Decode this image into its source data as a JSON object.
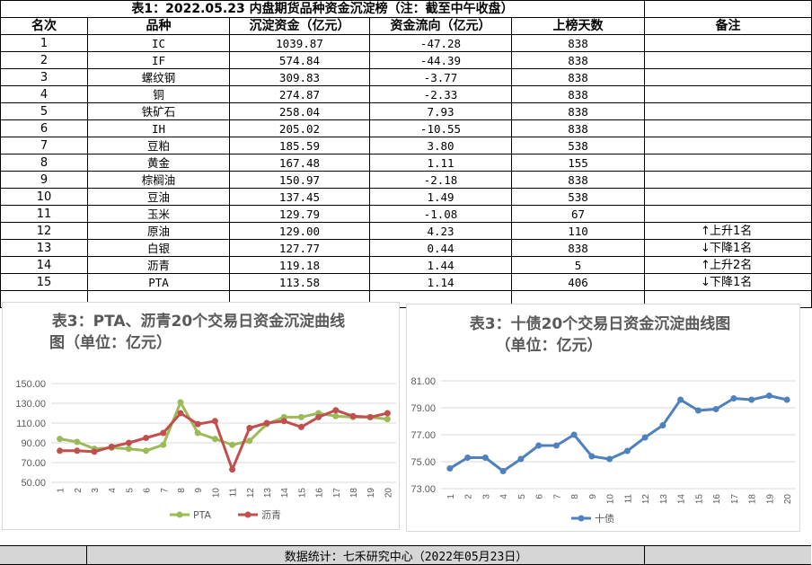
{
  "table": {
    "title": "表1：2022.05.23 内盘期货品种资金沉淀榜（注：截至中午收盘）",
    "headers": [
      "名次",
      "品种",
      "沉淀资金（亿元）",
      "资金流向（亿元）",
      "上榜天数",
      "备注"
    ],
    "rows": [
      {
        "rank": "1",
        "name": "IC",
        "fund": "1039.87",
        "flow": "-47.28",
        "days": "838",
        "note": "",
        "arrow": ""
      },
      {
        "rank": "2",
        "name": "IF",
        "fund": "574.84",
        "flow": "-44.39",
        "days": "838",
        "note": "",
        "arrow": ""
      },
      {
        "rank": "3",
        "name": "螺纹钢",
        "fund": "309.83",
        "flow": "-3.77",
        "days": "838",
        "note": "",
        "arrow": ""
      },
      {
        "rank": "4",
        "name": "铜",
        "fund": "274.87",
        "flow": "-2.33",
        "days": "838",
        "note": "",
        "arrow": ""
      },
      {
        "rank": "5",
        "name": "铁矿石",
        "fund": "258.04",
        "flow": "7.93",
        "days": "838",
        "note": "",
        "arrow": ""
      },
      {
        "rank": "6",
        "name": "IH",
        "fund": "205.02",
        "flow": "-10.55",
        "days": "838",
        "note": "",
        "arrow": ""
      },
      {
        "rank": "7",
        "name": "豆粕",
        "fund": "185.59",
        "flow": "3.80",
        "days": "538",
        "note": "",
        "arrow": ""
      },
      {
        "rank": "8",
        "name": "黄金",
        "fund": "167.48",
        "flow": "1.11",
        "days": "155",
        "note": "",
        "arrow": ""
      },
      {
        "rank": "9",
        "name": "棕榈油",
        "fund": "150.97",
        "flow": "-2.18",
        "days": "838",
        "note": "",
        "arrow": ""
      },
      {
        "rank": "10",
        "name": "豆油",
        "fund": "137.45",
        "flow": "1.49",
        "days": "538",
        "note": "",
        "arrow": ""
      },
      {
        "rank": "11",
        "name": "玉米",
        "fund": "129.79",
        "flow": "-1.08",
        "days": "67",
        "note": "",
        "arrow": ""
      },
      {
        "rank": "12",
        "name": "原油",
        "fund": "129.00",
        "flow": "4.23",
        "days": "110",
        "note": "上升1名",
        "arrow": "↑"
      },
      {
        "rank": "13",
        "name": "白银",
        "fund": "127.77",
        "flow": "0.44",
        "days": "838",
        "note": "下降1名",
        "arrow": "↓"
      },
      {
        "rank": "14",
        "name": "沥青",
        "fund": "119.18",
        "flow": "1.44",
        "days": "5",
        "note": "上升2名",
        "arrow": "↑"
      },
      {
        "rank": "15",
        "name": "PTA",
        "fund": "113.58",
        "flow": "1.14",
        "days": "406",
        "note": "下降1名",
        "arrow": "↓"
      }
    ]
  },
  "footer": "数据统计：七禾研究中心（2022年05月23日）",
  "chart_data": [
    {
      "type": "line",
      "title": "表3：PTA、沥青20个交易日资金沉淀曲线图（单位：亿元）",
      "title_lines": [
        "表3：PTA、沥青20个交易日资金沉淀曲线",
        "图（单位：亿元）"
      ],
      "x": [
        "1",
        "2",
        "3",
        "4",
        "5",
        "6",
        "7",
        "8",
        "9",
        "10",
        "11",
        "12",
        "13",
        "14",
        "15",
        "16",
        "17",
        "18",
        "19",
        "20"
      ],
      "ylim": [
        50,
        150
      ],
      "yticks": [
        "150.00",
        "130.00",
        "110.00",
        "90.00",
        "70.00",
        "50.00"
      ],
      "ytick_values": [
        150,
        130,
        110,
        90,
        70,
        50
      ],
      "grid": true,
      "legend": "bottom",
      "series": [
        {
          "name": "PTA",
          "color": "#9bbb59",
          "values": [
            94,
            91,
            84,
            85,
            84,
            82,
            88,
            131,
            100,
            94,
            88,
            92,
            109,
            116,
            116,
            120,
            117,
            116,
            116,
            114
          ]
        },
        {
          "name": "沥青",
          "color": "#c0504d",
          "values": [
            82,
            82,
            81,
            86,
            90,
            95,
            100,
            120,
            109,
            112,
            63,
            105,
            110,
            112,
            106,
            116,
            123,
            117,
            116,
            120
          ]
        }
      ]
    },
    {
      "type": "line",
      "title": "表3：十债20个交易日资金沉淀曲线图（单位：亿元）",
      "title_lines": [
        "表3：十债20个交易日资金沉淀曲线图",
        "（单位：亿元）"
      ],
      "x": [
        "1",
        "2",
        "3",
        "4",
        "5",
        "6",
        "7",
        "8",
        "9",
        "10",
        "11",
        "12",
        "13",
        "14",
        "15",
        "16",
        "17",
        "18",
        "19",
        "20"
      ],
      "ylim": [
        73,
        81
      ],
      "yticks": [
        "81.00",
        "79.00",
        "77.00",
        "75.00",
        "73.00"
      ],
      "ytick_values": [
        81,
        79,
        77,
        75,
        73
      ],
      "grid": true,
      "legend": "bottom",
      "series": [
        {
          "name": "十债",
          "color": "#4f81bd",
          "values": [
            74.5,
            75.3,
            75.3,
            74.3,
            75.2,
            76.2,
            76.2,
            77.0,
            75.4,
            75.2,
            75.8,
            76.8,
            77.7,
            79.6,
            78.8,
            78.9,
            79.7,
            79.6,
            79.9,
            79.6
          ]
        }
      ]
    }
  ]
}
